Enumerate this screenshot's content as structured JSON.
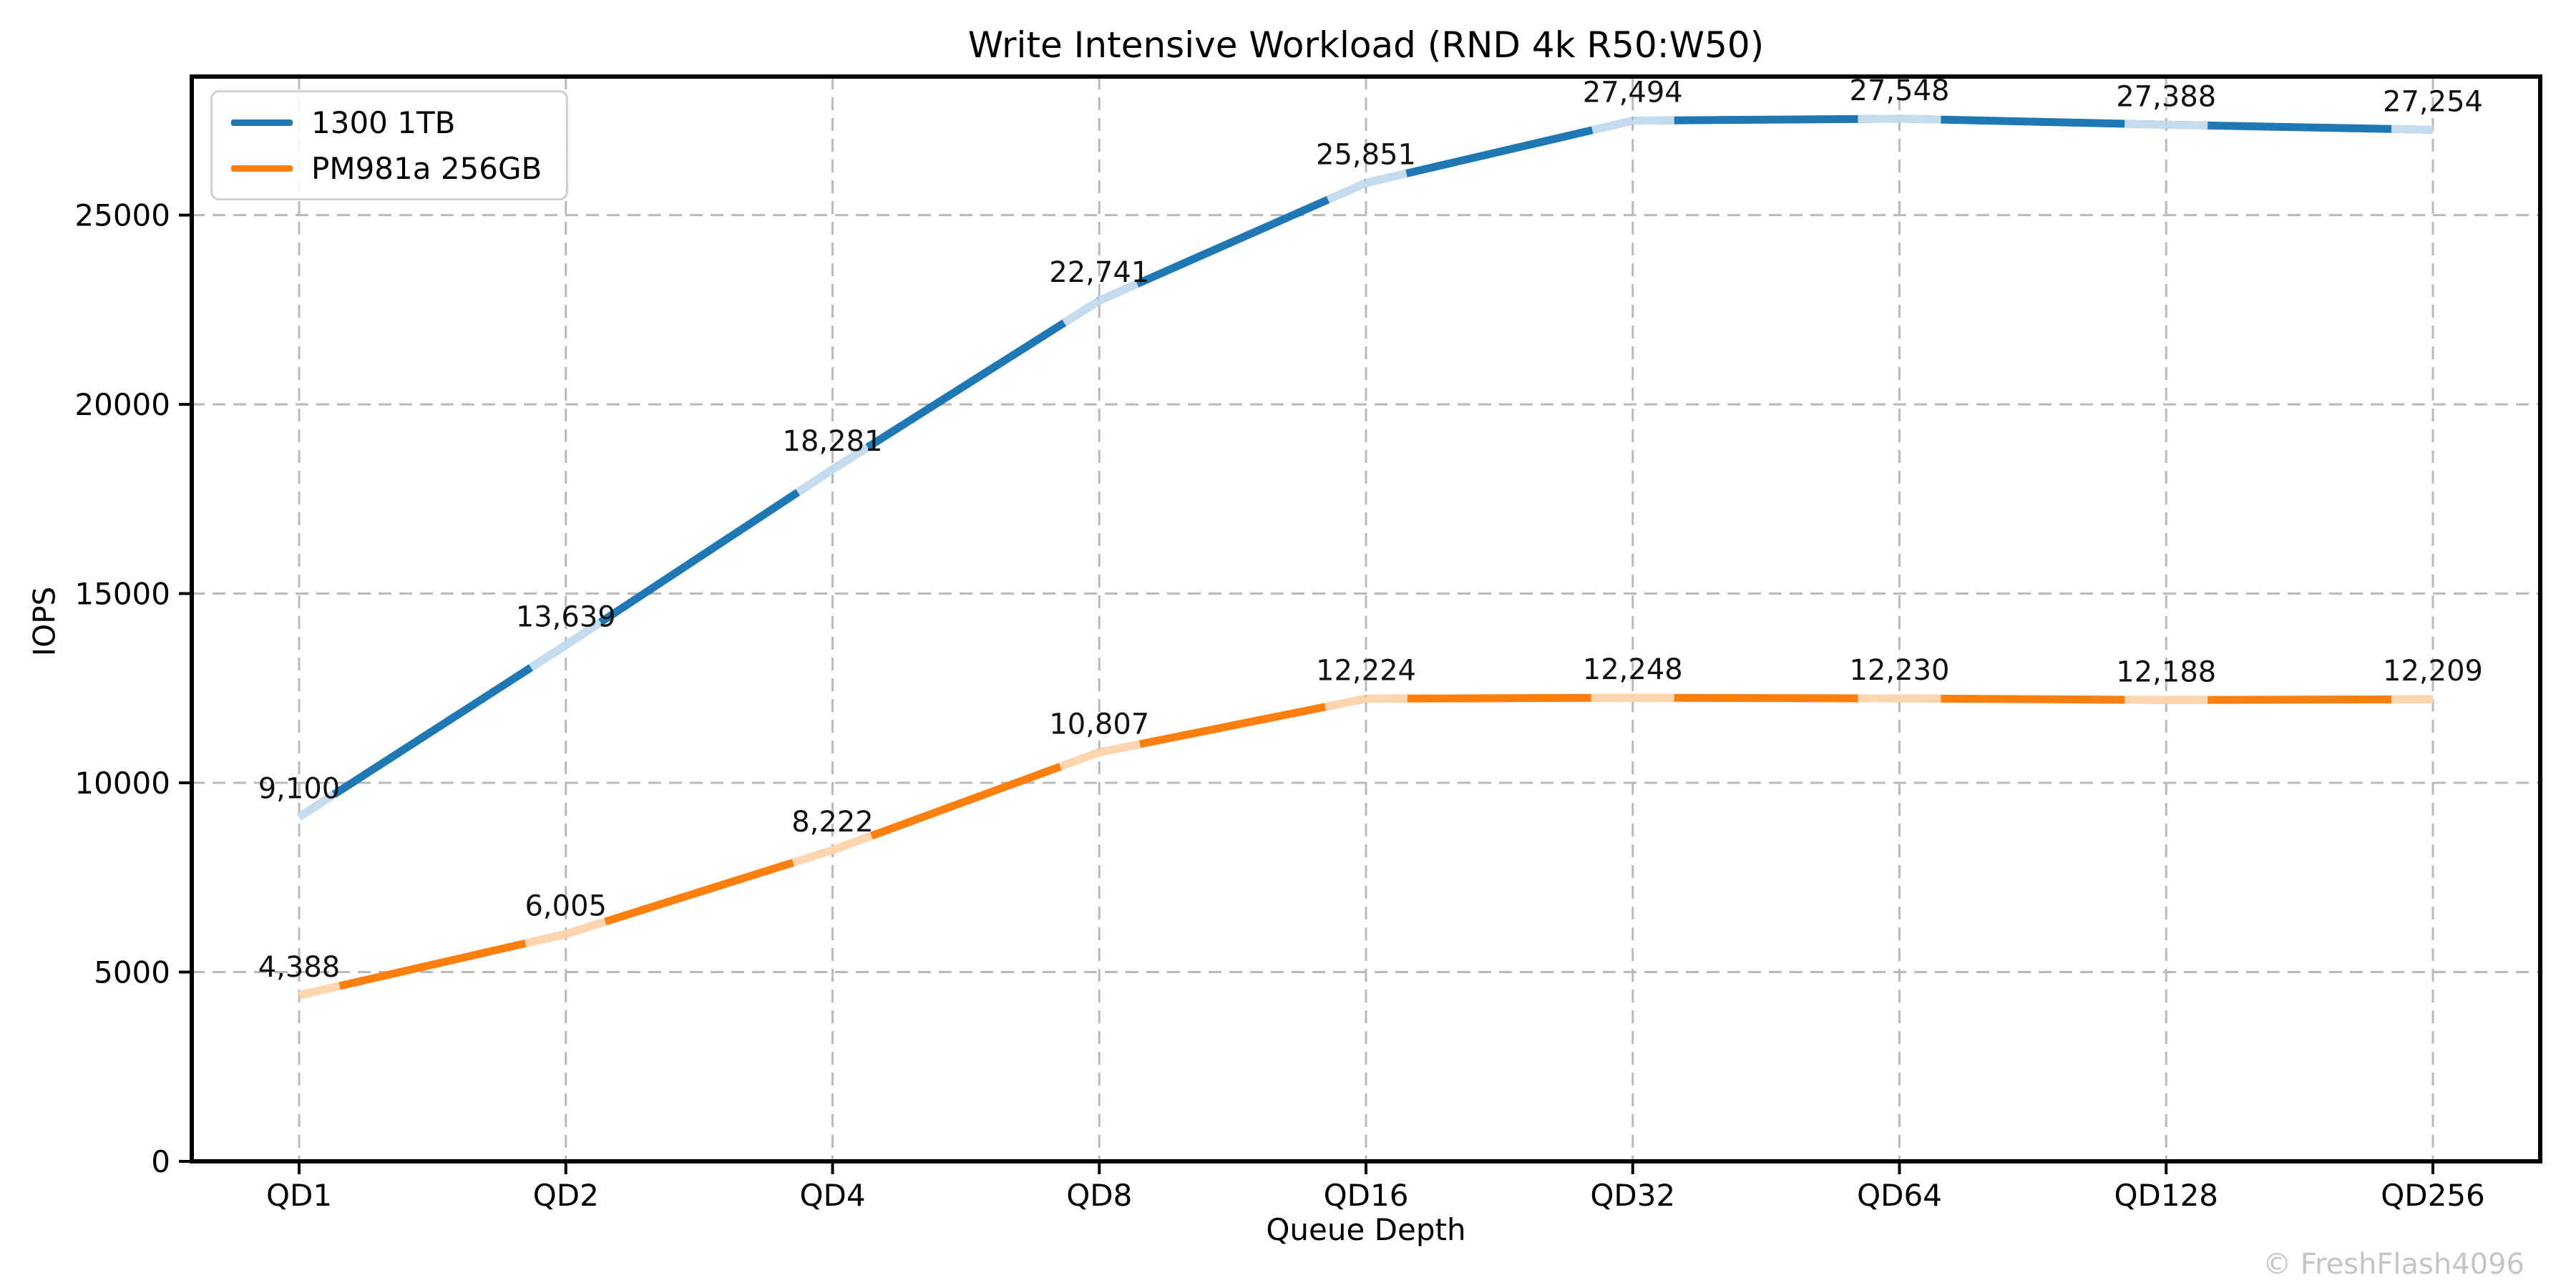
{
  "chart_data": {
    "type": "line",
    "title": "Write Intensive Workload (RND 4k R50:W50)",
    "xlabel": "Queue Depth",
    "ylabel": "IOPS",
    "categories": [
      "QD1",
      "QD2",
      "QD4",
      "QD8",
      "QD16",
      "QD32",
      "QD64",
      "QD128",
      "QD256"
    ],
    "series": [
      {
        "name": "1300 1TB",
        "color": "#1f77b4",
        "marker_color": "#c5dcee",
        "values": [
          9100,
          13639,
          18281,
          22741,
          25851,
          27494,
          27548,
          27388,
          27254
        ]
      },
      {
        "name": "PM981a 256GB",
        "color": "#ff7f0e",
        "marker_color": "#fdd5ae",
        "values": [
          4388,
          6005,
          8222,
          10807,
          12224,
          12248,
          12230,
          12188,
          12209
        ]
      }
    ],
    "y_ticks": [
      0,
      5000,
      10000,
      15000,
      20000,
      25000
    ],
    "ylim": [
      0,
      28660
    ],
    "grid": true,
    "grid_style": "dashed",
    "legend_position": "upper left",
    "data_labels": true,
    "watermark": "© FreshFlash4096"
  }
}
